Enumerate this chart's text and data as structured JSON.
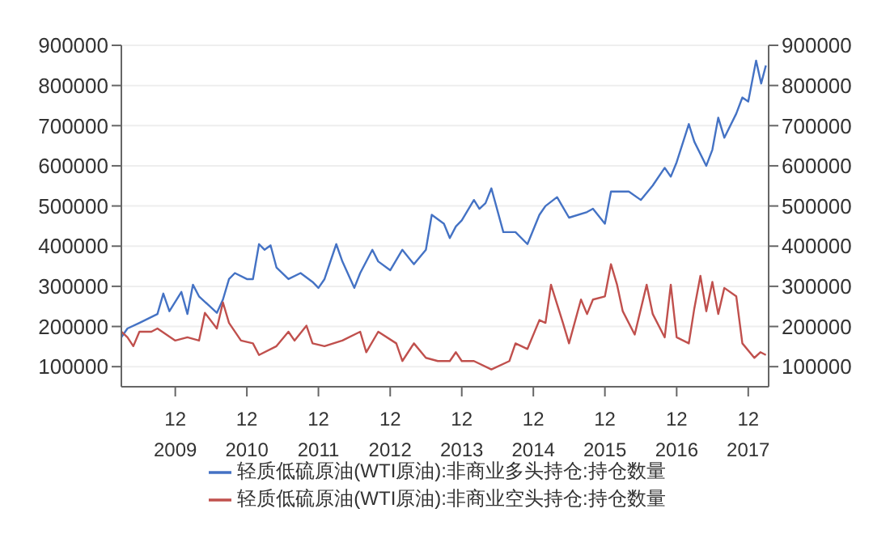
{
  "chart_data": {
    "type": "line",
    "xlim": [
      "2009-03-01",
      "2018-03-15"
    ],
    "xticks": [
      {
        "value": "2009-12",
        "label": "12\n2009"
      },
      {
        "value": "2010-12",
        "label": "12\n2010"
      },
      {
        "value": "2011-12",
        "label": "12\n2011"
      },
      {
        "value": "2012-12",
        "label": "12\n2012"
      },
      {
        "value": "2013-12",
        "label": "12\n2013"
      },
      {
        "value": "2014-12",
        "label": "12\n2014"
      },
      {
        "value": "2015-12",
        "label": "12\n2015"
      },
      {
        "value": "2016-12",
        "label": "12\n2016"
      },
      {
        "value": "2017-12",
        "label": "12\n2017"
      }
    ],
    "ylim": [
      50000,
      900000
    ],
    "yticks": [
      100000,
      200000,
      300000,
      400000,
      500000,
      600000,
      700000,
      800000,
      900000
    ],
    "y2lim": [
      50000,
      900000
    ],
    "y2ticks": [
      100000,
      200000,
      300000,
      400000,
      500000,
      600000,
      700000,
      800000,
      900000
    ],
    "grid": "y",
    "legend": "bottom",
    "series": [
      {
        "name": "轻质低硫原油(WTI原油):非商业多头持仓:持仓数量",
        "color": "#4472c4",
        "x": [
          "2009-03",
          "2009-04",
          "2009-06",
          "2009-09",
          "2009-10",
          "2009-11",
          "2010-01",
          "2010-02",
          "2010-03",
          "2010-04",
          "2010-07",
          "2010-08",
          "2010-09",
          "2010-10",
          "2010-12",
          "2011-01",
          "2011-02",
          "2011-03",
          "2011-04",
          "2011-05",
          "2011-07",
          "2011-09",
          "2011-11",
          "2011-12",
          "2012-01",
          "2012-03",
          "2012-04",
          "2012-06",
          "2012-07",
          "2012-09",
          "2012-10",
          "2012-12",
          "2013-02",
          "2013-04",
          "2013-06",
          "2013-07",
          "2013-09",
          "2013-10",
          "2013-11",
          "2013-12",
          "2014-02",
          "2014-03",
          "2014-04",
          "2014-05",
          "2014-07",
          "2014-09",
          "2014-11",
          "2015-01",
          "2015-02",
          "2015-04",
          "2015-06",
          "2015-09",
          "2015-10",
          "2015-12",
          "2016-01",
          "2016-04",
          "2016-06",
          "2016-08",
          "2016-10",
          "2016-11",
          "2016-12",
          "2017-02",
          "2017-03",
          "2017-05",
          "2017-06",
          "2017-07",
          "2017-08",
          "2017-10",
          "2017-11",
          "2017-12",
          "2018-01-10",
          "2018-02-05",
          "2018-03-01"
        ],
        "values": [
          173000,
          195000,
          209000,
          231000,
          282000,
          238000,
          286000,
          231000,
          304000,
          275000,
          234000,
          267000,
          318000,
          333000,
          318000,
          318000,
          405000,
          391000,
          402000,
          347000,
          318000,
          333000,
          311000,
          296000,
          318000,
          405000,
          362000,
          296000,
          333000,
          391000,
          362000,
          340000,
          391000,
          355000,
          391000,
          478000,
          456000,
          420000,
          449000,
          464000,
          515000,
          493000,
          507000,
          544000,
          435000,
          435000,
          405000,
          478000,
          500000,
          522000,
          471000,
          485000,
          493000,
          456000,
          536000,
          536000,
          515000,
          551000,
          595000,
          573000,
          609000,
          704000,
          660000,
          600000,
          640000,
          720000,
          670000,
          730000,
          770000,
          760000,
          862000,
          805000,
          850000
        ]
      },
      {
        "name": "轻质低硫原油(WTI原油):非商业空头持仓:持仓数量",
        "color": "#c0504d",
        "x": [
          "2009-03",
          "2009-04",
          "2009-05",
          "2009-06",
          "2009-08",
          "2009-09",
          "2009-12",
          "2010-02",
          "2010-04",
          "2010-05",
          "2010-07",
          "2010-08",
          "2010-09",
          "2010-11",
          "2011-01",
          "2011-02",
          "2011-05",
          "2011-07",
          "2011-08",
          "2011-10",
          "2011-11",
          "2012-01",
          "2012-04",
          "2012-07",
          "2012-08",
          "2012-10",
          "2013-01",
          "2013-02",
          "2013-04",
          "2013-06",
          "2013-08",
          "2013-10",
          "2013-11",
          "2013-12",
          "2014-02",
          "2014-05",
          "2014-08",
          "2014-09",
          "2014-11",
          "2015-01",
          "2015-02",
          "2015-03",
          "2015-05",
          "2015-06",
          "2015-08",
          "2015-09",
          "2015-10",
          "2015-12",
          "2016-01",
          "2016-02",
          "2016-03",
          "2016-05",
          "2016-07",
          "2016-08",
          "2016-10",
          "2016-11",
          "2016-12",
          "2017-02",
          "2017-03",
          "2017-04",
          "2017-05",
          "2017-06",
          "2017-07",
          "2017-08",
          "2017-10",
          "2017-11",
          "2018-01",
          "2018-02",
          "2018-03"
        ],
        "values": [
          187000,
          173000,
          151000,
          187000,
          187000,
          195000,
          165000,
          173000,
          165000,
          234000,
          195000,
          260000,
          209000,
          165000,
          158000,
          129000,
          151000,
          187000,
          165000,
          202000,
          158000,
          151000,
          165000,
          187000,
          136000,
          187000,
          158000,
          114000,
          158000,
          122000,
          114000,
          114000,
          136000,
          114000,
          114000,
          93000,
          114000,
          158000,
          144000,
          216000,
          209000,
          304000,
          209000,
          158000,
          267000,
          231000,
          267000,
          275000,
          355000,
          304000,
          238000,
          180000,
          304000,
          231000,
          173000,
          304000,
          173000,
          158000,
          245000,
          326000,
          238000,
          311000,
          231000,
          296000,
          275000,
          158000,
          122000,
          136000,
          129000
        ]
      }
    ]
  }
}
